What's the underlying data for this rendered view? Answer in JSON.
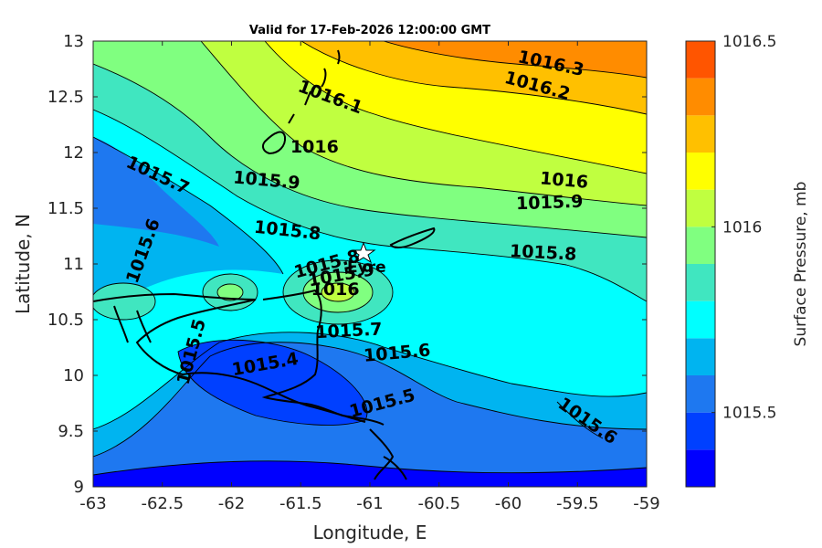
{
  "chart_data": {
    "type": "heatmap",
    "subtype": "filled-contour-map",
    "title": "Valid for 17-Feb-2026 12:00:00 GMT",
    "xlabel": "Longitude, E",
    "ylabel": "Latitude, N",
    "xlim": [
      -63,
      -59
    ],
    "ylim": [
      9,
      13
    ],
    "xticks": [
      -63,
      -62.5,
      -62,
      -61.5,
      -61,
      -60.5,
      -60,
      -59.5,
      -59
    ],
    "yticks": [
      9,
      9.5,
      10,
      10.5,
      11,
      11.5,
      12,
      12.5,
      13
    ],
    "colorbar": {
      "label": "Surface Pressure, mb",
      "range": [
        1015.3,
        1016.5
      ],
      "ticks": [
        1015.5,
        1016,
        1016.5
      ],
      "levels": [
        1015.3,
        1015.4,
        1015.5,
        1015.6,
        1015.7,
        1015.8,
        1015.9,
        1016.0,
        1016.1,
        1016.2,
        1016.3,
        1016.4,
        1016.5
      ],
      "colors": [
        "#0000ff",
        "#0040ff",
        "#1e78f0",
        "#00b4f0",
        "#00ffff",
        "#40e6c0",
        "#80ff80",
        "#c0ff40",
        "#ffff00",
        "#ffc000",
        "#ff8c00",
        "#ff5500",
        "#ff0000"
      ]
    },
    "contour_labels": [
      {
        "text": "1016.3",
        "lon": -59.7,
        "lat": 12.75
      },
      {
        "text": "1016.2",
        "lon": -59.8,
        "lat": 12.55
      },
      {
        "text": "1016.1",
        "lon": -61.3,
        "lat": 12.45
      },
      {
        "text": "1016",
        "lon": -61.4,
        "lat": 12.0
      },
      {
        "text": "1016",
        "lon": -59.6,
        "lat": 11.7
      },
      {
        "text": "1015.9",
        "lon": -61.75,
        "lat": 11.7
      },
      {
        "text": "1015.9",
        "lon": -59.7,
        "lat": 11.5
      },
      {
        "text": "1015.8",
        "lon": -61.6,
        "lat": 11.25
      },
      {
        "text": "1015.8",
        "lon": -59.75,
        "lat": 11.05
      },
      {
        "text": "1015.7",
        "lon": -62.55,
        "lat": 11.75
      },
      {
        "text": "1015.7",
        "lon": -61.15,
        "lat": 10.35
      },
      {
        "text": "1015.6",
        "lon": -62.6,
        "lat": 11.1
      },
      {
        "text": "1015.6",
        "lon": -60.8,
        "lat": 10.15
      },
      {
        "text": "1015.6",
        "lon": -59.45,
        "lat": 9.55
      },
      {
        "text": "1015.5",
        "lon": -62.25,
        "lat": 10.2
      },
      {
        "text": "1015.5",
        "lon": -60.9,
        "lat": 9.7
      },
      {
        "text": "1015.4",
        "lon": -61.75,
        "lat": 10.05
      },
      {
        "text": "1015.8",
        "lon": -61.3,
        "lat": 10.95
      },
      {
        "text": "1015.9",
        "lon": -61.2,
        "lat": 10.85
      },
      {
        "text": "1016",
        "lon": -61.25,
        "lat": 10.72
      }
    ],
    "station": {
      "name": "Eyre",
      "lon": -61.03,
      "lat": 11.11
    }
  }
}
